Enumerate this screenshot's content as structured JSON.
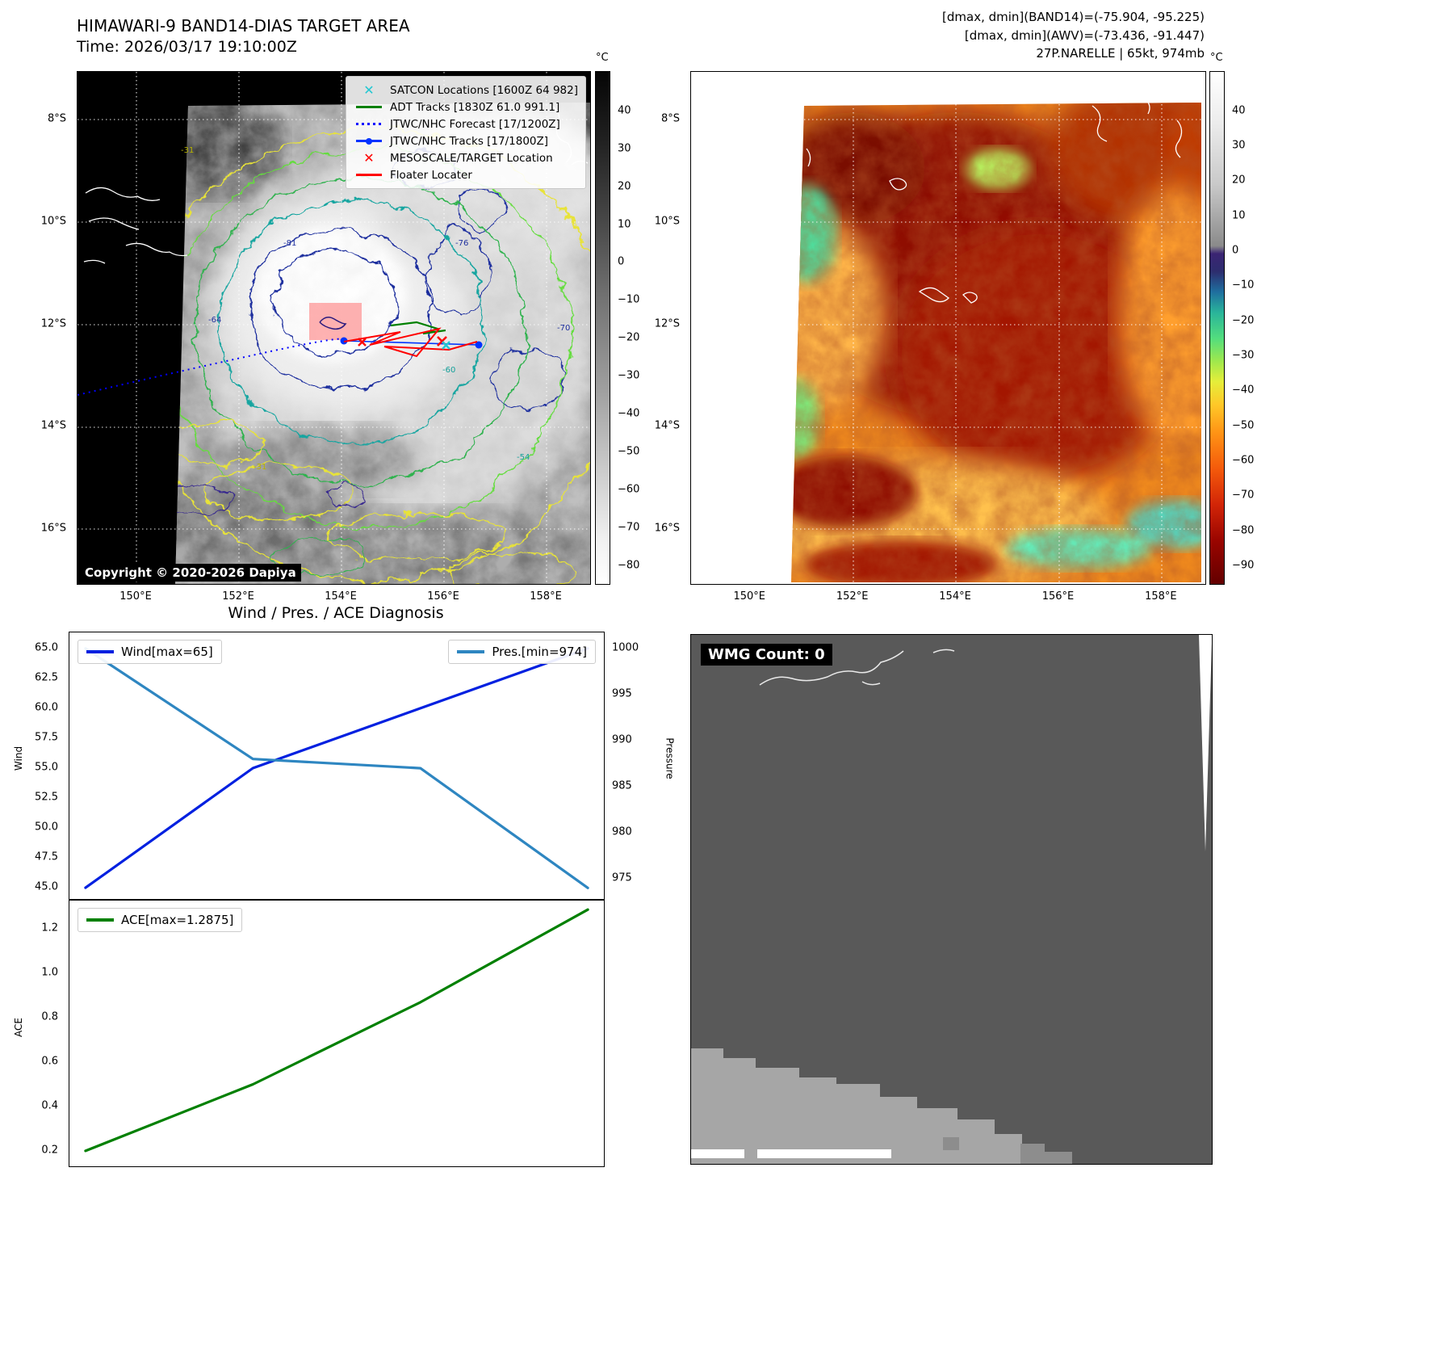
{
  "panel_tl": {
    "title_line1": "HIMAWARI-9 BAND14-DIAS TARGET AREA",
    "title_line2": "Time: 2026/03/17 19:10:00Z",
    "copyright": "Copyright © 2020-2026 Dapiya",
    "legend": [
      {
        "label": "SATCON Locations [1600Z 64 982]",
        "marker": "x",
        "color": "#22c8d2",
        "icon": "satcon-x-marker"
      },
      {
        "label": "ADT Tracks [1830Z 61.0 991.1]",
        "marker": "line",
        "color": "#008000",
        "icon": "adt-track-line"
      },
      {
        "label": "JTWC/NHC Forecast [17/1200Z]",
        "marker": "dotted",
        "color": "#0000ff",
        "icon": "forecast-dotted-line"
      },
      {
        "label": "JTWC/NHC Tracks [17/1800Z]",
        "marker": "linedot",
        "color": "#0033ff",
        "icon": "track-line-with-marker"
      },
      {
        "label": "MESOSCALE/TARGET Location",
        "marker": "x",
        "color": "#ff0000",
        "icon": "mesoscale-target-x-marker"
      },
      {
        "label": "Floater Locater",
        "marker": "line",
        "color": "#ff0000",
        "icon": "floater-locater-line"
      }
    ],
    "x_ticks": [
      "150°E",
      "152°E",
      "154°E",
      "156°E",
      "158°E"
    ],
    "y_ticks": [
      "8°S",
      "10°S",
      "12°S",
      "14°S",
      "16°S"
    ],
    "colorbar_unit": "°C",
    "colorbar_ticks": [
      "40",
      "30",
      "20",
      "10",
      "0",
      "−10",
      "−20",
      "−30",
      "−40",
      "−50",
      "−60",
      "−70",
      "−80"
    ],
    "contour_labels": [
      "-81",
      "-64",
      "-76",
      "-70",
      "-60",
      "-54",
      "-31",
      "-31"
    ]
  },
  "panel_tr": {
    "header_line1": "[dmax, dmin](BAND14)=(-75.904, -95.225)",
    "header_line2": "[dmax, dmin](AWV)=(-73.436, -91.447)",
    "header_line3": "27P.NARELLE | 65kt, 974mb",
    "x_ticks": [
      "150°E",
      "152°E",
      "154°E",
      "156°E",
      "158°E"
    ],
    "y_ticks": [
      "8°S",
      "10°S",
      "12°S",
      "14°S",
      "16°S"
    ],
    "colorbar_unit": "°C",
    "colorbar_ticks": [
      "40",
      "30",
      "20",
      "10",
      "0",
      "−10",
      "−20",
      "−30",
      "−40",
      "−50",
      "−60",
      "−70",
      "−80",
      "−90"
    ]
  },
  "diagnosis": {
    "title": "Wind / Pres. / ACE Diagnosis",
    "wind_legend": "Wind[max=65]",
    "pres_legend": "Pres.[min=974]",
    "ace_legend": "ACE[max=1.2875]",
    "ylabel_wind": "Wind",
    "ylabel_pressure": "Pressure",
    "ylabel_ace": "ACE",
    "wind_ticks": [
      "65.0",
      "62.5",
      "60.0",
      "57.5",
      "55.0",
      "52.5",
      "50.0",
      "47.5",
      "45.0"
    ],
    "pressure_ticks": [
      "1000",
      "995",
      "990",
      "985",
      "980",
      "975"
    ],
    "ace_ticks": [
      "1.2",
      "1.0",
      "0.8",
      "0.6",
      "0.4",
      "0.2"
    ]
  },
  "panel_br": {
    "label": "WMG Count: 0"
  },
  "chart_data": [
    {
      "type": "line",
      "title": "Wind / Pres. / ACE Diagnosis",
      "x": [
        0,
        1,
        2,
        3
      ],
      "series": [
        {
          "name": "Wind[max=65]",
          "values": [
            45,
            55,
            60,
            65
          ],
          "axis": "left",
          "color": "#0020e0"
        },
        {
          "name": "Pres.[min=974]",
          "values": [
            1000,
            988,
            987,
            974
          ],
          "axis": "right",
          "color": "#2e86c1"
        }
      ],
      "ylabel_left": "Wind",
      "ylabel_right": "Pressure",
      "ylim_left": [
        44.5,
        65.5
      ],
      "ylim_right": [
        973.5,
        1000.5
      ],
      "grid": false,
      "legend_position": "upper-left and upper-right"
    },
    {
      "type": "line",
      "x": [
        0,
        1,
        2,
        3
      ],
      "series": [
        {
          "name": "ACE[max=1.2875]",
          "values": [
            0.2,
            0.5,
            0.87,
            1.2875
          ],
          "axis": "left",
          "color": "#008000"
        }
      ],
      "ylabel_left": "ACE",
      "ylim_left": [
        0.14,
        1.35
      ],
      "grid": false,
      "legend_position": "upper-left"
    }
  ]
}
